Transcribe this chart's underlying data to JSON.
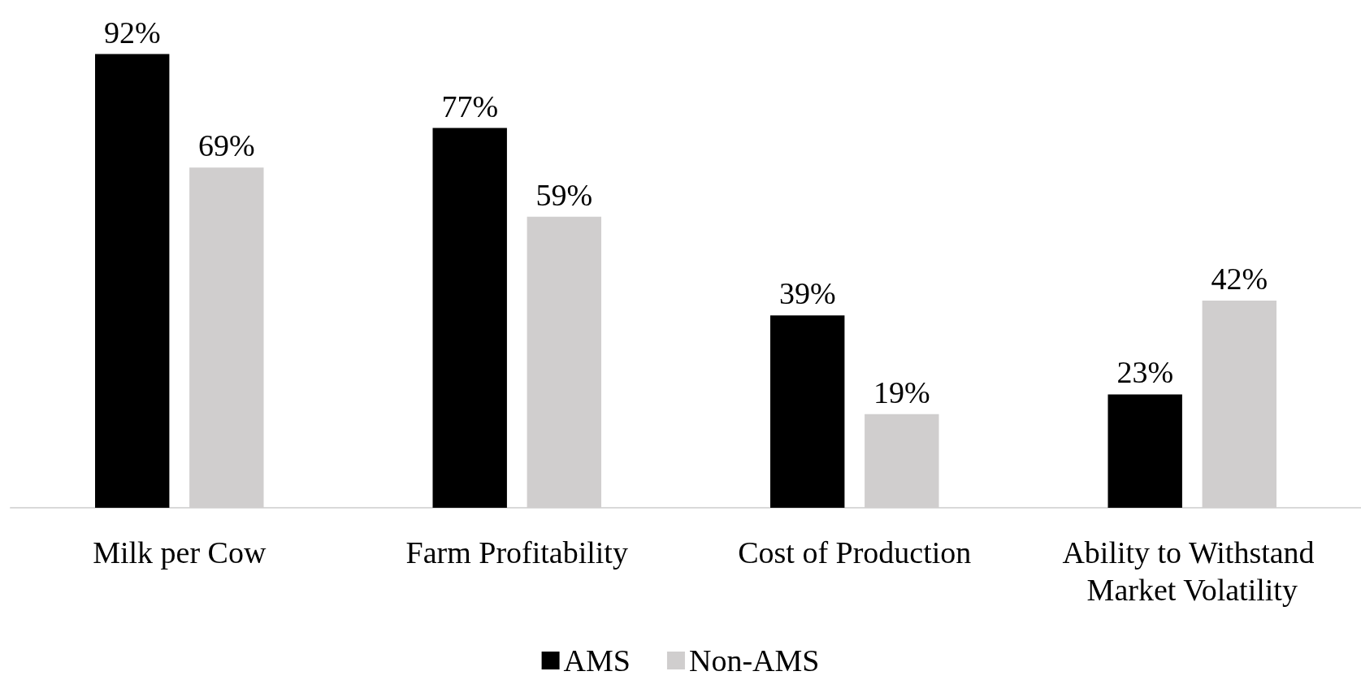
{
  "chart_data": {
    "type": "bar",
    "categories": [
      "Milk per Cow",
      "Farm Profitability",
      "Cost of Production",
      "Ability to Withstand Market Volatility"
    ],
    "series": [
      {
        "name": "AMS",
        "color": "#000000",
        "values": [
          92,
          77,
          39,
          23
        ],
        "value_labels": [
          "92%",
          "77%",
          "39%",
          "23%"
        ]
      },
      {
        "name": "Non-AMS",
        "color": "#d0cece",
        "values": [
          69,
          59,
          19,
          42
        ],
        "value_labels": [
          "69%",
          "59%",
          "19%",
          "42%"
        ]
      }
    ],
    "tick_labels": "x",
    "legend": "bottom"
  }
}
